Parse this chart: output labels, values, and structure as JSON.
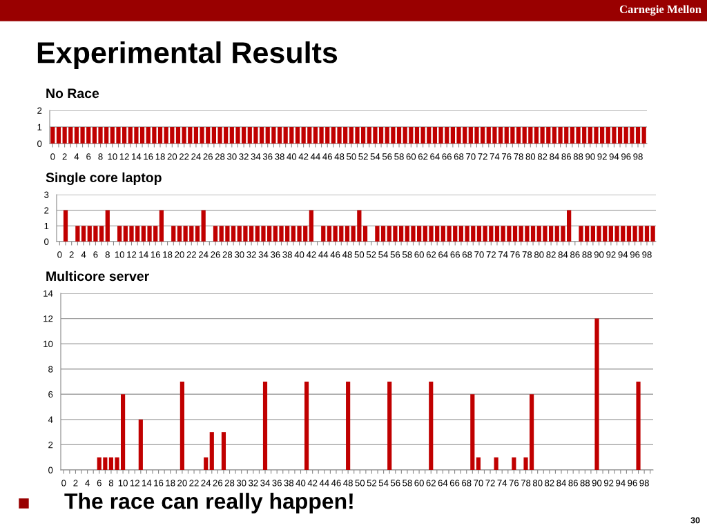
{
  "chart_data": [
    {
      "type": "bar",
      "title": "No Race",
      "annotations": [
        "Carnegie Mellon",
        "Experimental Results"
      ],
      "categories": [
        "0",
        null,
        "2",
        null,
        "4",
        null,
        "6",
        null,
        "8",
        null,
        "10",
        null,
        "12",
        null,
        "14",
        null,
        "16",
        null,
        "18",
        null,
        "20",
        null,
        "22",
        null,
        "24",
        null,
        "26",
        null,
        "28",
        null,
        "30",
        null,
        "32",
        null,
        "34",
        null,
        "36",
        null,
        "38",
        null,
        "40",
        null,
        "42",
        null,
        "44",
        null,
        "46",
        null,
        "48",
        null,
        "50",
        null,
        "52",
        null,
        "54",
        null,
        "56",
        null,
        "58",
        null,
        "60",
        null,
        "62",
        null,
        "64",
        null,
        "66",
        null,
        "68",
        null,
        "70",
        null,
        "72",
        null,
        "74",
        null,
        "76",
        null,
        "78",
        null,
        "80",
        null,
        "82",
        null,
        "84",
        null,
        "86",
        null,
        "88",
        null,
        "90",
        null,
        "92",
        null,
        "94",
        null,
        "96",
        null,
        "98",
        null
      ],
      "values": [
        1,
        1,
        1,
        1,
        1,
        1,
        1,
        1,
        1,
        1,
        1,
        1,
        1,
        1,
        1,
        1,
        1,
        1,
        1,
        1,
        1,
        1,
        1,
        1,
        1,
        1,
        1,
        1,
        1,
        1,
        1,
        1,
        1,
        1,
        1,
        1,
        1,
        1,
        1,
        1,
        1,
        1,
        1,
        1,
        1,
        1,
        1,
        1,
        1,
        1,
        1,
        1,
        1,
        1,
        1,
        1,
        1,
        1,
        1,
        1,
        1,
        1,
        1,
        1,
        1,
        1,
        1,
        1,
        1,
        1,
        1,
        1,
        1,
        1,
        1,
        1,
        1,
        1,
        1,
        1,
        1,
        1,
        1,
        1,
        1,
        1,
        1,
        1,
        1,
        1,
        1,
        1,
        1,
        1,
        1,
        1,
        1,
        1,
        1,
        1
      ],
      "color": "#c00000",
      "ylim": [
        0,
        2
      ],
      "yticks": [
        0,
        1,
        2
      ],
      "grid": "y",
      "legend": false
    },
    {
      "type": "bar",
      "title": "Single core laptop",
      "categories": [
        "0",
        null,
        "2",
        null,
        "4",
        null,
        "6",
        null,
        "8",
        null,
        "10",
        null,
        "12",
        null,
        "14",
        null,
        "16",
        null,
        "18",
        null,
        "20",
        null,
        "22",
        null,
        "24",
        null,
        "26",
        null,
        "28",
        null,
        "30",
        null,
        "32",
        null,
        "34",
        null,
        "36",
        null,
        "38",
        null,
        "40",
        null,
        "42",
        null,
        "44",
        null,
        "46",
        null,
        "48",
        null,
        "50",
        null,
        "52",
        null,
        "54",
        null,
        "56",
        null,
        "58",
        null,
        "60",
        null,
        "62",
        null,
        "64",
        null,
        "66",
        null,
        "68",
        null,
        "70",
        null,
        "72",
        null,
        "74",
        null,
        "76",
        null,
        "78",
        null,
        "80",
        null,
        "82",
        null,
        "84",
        null,
        "86",
        null,
        "88",
        null,
        "90",
        null,
        "92",
        null,
        "94",
        null,
        "96",
        null,
        "98",
        null
      ],
      "values": [
        0,
        2,
        0,
        1,
        1,
        1,
        1,
        1,
        2,
        0,
        1,
        1,
        1,
        1,
        1,
        1,
        1,
        2,
        0,
        1,
        1,
        1,
        1,
        1,
        2,
        0,
        1,
        1,
        1,
        1,
        1,
        1,
        1,
        1,
        1,
        1,
        1,
        1,
        1,
        1,
        1,
        1,
        2,
        0,
        1,
        1,
        1,
        1,
        1,
        1,
        2,
        1,
        0,
        1,
        1,
        1,
        1,
        1,
        1,
        1,
        1,
        1,
        1,
        1,
        1,
        1,
        1,
        1,
        1,
        1,
        1,
        1,
        1,
        1,
        1,
        1,
        1,
        1,
        1,
        1,
        1,
        1,
        1,
        1,
        1,
        2,
        0,
        1,
        1,
        1,
        1,
        1,
        1,
        1,
        1,
        1,
        1,
        1,
        1,
        1
      ],
      "color": "#c00000",
      "ylim": [
        0,
        3
      ],
      "yticks": [
        0,
        1,
        2,
        3
      ],
      "grid": "y",
      "legend": false
    },
    {
      "type": "bar",
      "title": "Multicore server",
      "annotations": [
        "The race can really happen!",
        "30"
      ],
      "categories": [
        "0",
        null,
        "2",
        null,
        "4",
        null,
        "6",
        null,
        "8",
        null,
        "10",
        null,
        "12",
        null,
        "14",
        null,
        "16",
        null,
        "18",
        null,
        "20",
        null,
        "22",
        null,
        "24",
        null,
        "26",
        null,
        "28",
        null,
        "30",
        null,
        "32",
        null,
        "34",
        null,
        "36",
        null,
        "38",
        null,
        "40",
        null,
        "42",
        null,
        "44",
        null,
        "46",
        null,
        "48",
        null,
        "50",
        null,
        "52",
        null,
        "54",
        null,
        "56",
        null,
        "58",
        null,
        "60",
        null,
        "62",
        null,
        "64",
        null,
        "66",
        null,
        "68",
        null,
        "70",
        null,
        "72",
        null,
        "74",
        null,
        "76",
        null,
        "78",
        null,
        "80",
        null,
        "82",
        null,
        "84",
        null,
        "86",
        null,
        "88",
        null,
        "90",
        null,
        "92",
        null,
        "94",
        null,
        "96",
        null,
        "98",
        null
      ],
      "values": [
        0,
        0,
        0,
        0,
        0,
        0,
        1,
        1,
        1,
        1,
        6,
        0,
        0,
        4,
        0,
        0,
        0,
        0,
        0,
        0,
        7,
        0,
        0,
        0,
        1,
        3,
        0,
        3,
        0,
        0,
        0,
        0,
        0,
        0,
        7,
        0,
        0,
        0,
        0,
        0,
        0,
        7,
        0,
        0,
        0,
        0,
        0,
        0,
        7,
        0,
        0,
        0,
        0,
        0,
        0,
        7,
        0,
        0,
        0,
        0,
        0,
        0,
        7,
        0,
        0,
        0,
        0,
        0,
        0,
        6,
        1,
        0,
        0,
        1,
        0,
        0,
        1,
        0,
        1,
        6,
        0,
        0,
        0,
        0,
        0,
        0,
        0,
        0,
        0,
        0,
        12,
        0,
        0,
        0,
        0,
        0,
        0,
        7,
        0,
        0
      ],
      "color": "#c00000",
      "ylim": [
        0,
        14
      ],
      "yticks": [
        0,
        2,
        4,
        6,
        8,
        10,
        12,
        14
      ],
      "grid": "y",
      "legend": false
    }
  ]
}
